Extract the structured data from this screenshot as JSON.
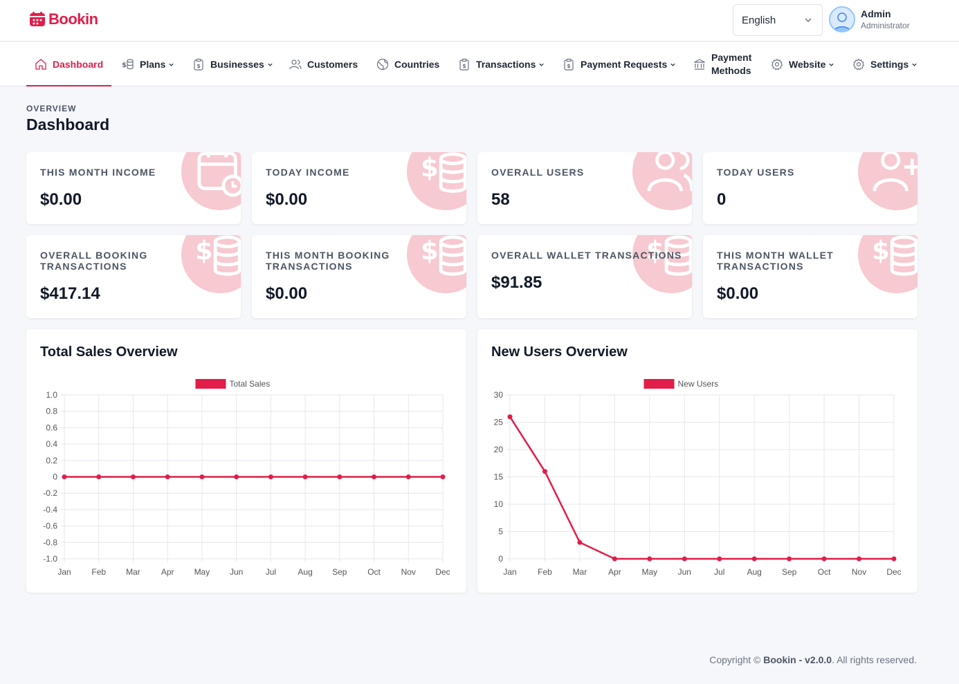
{
  "app": {
    "name": "Bookin"
  },
  "header": {
    "language": "English",
    "user": {
      "name": "Admin",
      "role": "Administrator"
    }
  },
  "nav": [
    {
      "label": "Dashboard",
      "icon": "home-icon",
      "dropdown": false,
      "active": true
    },
    {
      "label": "Plans",
      "icon": "dollar-coins-icon",
      "dropdown": true
    },
    {
      "label": "Businesses",
      "icon": "clipboard-dollar-icon",
      "dropdown": true
    },
    {
      "label": "Customers",
      "icon": "users-icon",
      "dropdown": false
    },
    {
      "label": "Countries",
      "icon": "globe-icon",
      "dropdown": false
    },
    {
      "label": "Transactions",
      "icon": "clipboard-dollar-icon",
      "dropdown": true
    },
    {
      "label": "Payment Requests",
      "icon": "clipboard-dollar-icon",
      "dropdown": true
    },
    {
      "label": "Payment",
      "label2": "Methods",
      "icon": "bank-icon",
      "dropdown": false
    },
    {
      "label": "Website",
      "icon": "gear-icon",
      "dropdown": true
    },
    {
      "label": "Settings",
      "icon": "gear-icon",
      "dropdown": true
    }
  ],
  "page": {
    "overline": "OVERVIEW",
    "title": "Dashboard"
  },
  "stats": [
    {
      "label": "THIS MONTH INCOME",
      "value": "$0.00",
      "icon": "calendar-clock-icon"
    },
    {
      "label": "TODAY INCOME",
      "value": "$0.00",
      "icon": "dollar-coins-icon"
    },
    {
      "label": "OVERALL USERS",
      "value": "58",
      "icon": "users-icon"
    },
    {
      "label": "TODAY USERS",
      "value": "0",
      "icon": "user-plus-icon"
    },
    {
      "label": "OVERALL BOOKING TRANSACTIONS",
      "value": "$417.14",
      "icon": "dollar-coins-icon"
    },
    {
      "label": "THIS MONTH BOOKING TRANSACTIONS",
      "value": "$0.00",
      "icon": "dollar-coins-icon"
    },
    {
      "label": "OVERALL WALLET TRANSACTIONS",
      "value": "$91.85",
      "icon": "dollar-coins-icon"
    },
    {
      "label": "THIS MONTH WALLET TRANSACTIONS",
      "value": "$0.00",
      "icon": "dollar-coins-icon"
    }
  ],
  "charts": [
    {
      "title": "Total Sales Overview"
    },
    {
      "title": "New Users Overview"
    }
  ],
  "chart_data": [
    {
      "type": "line",
      "title": "Total Sales Overview",
      "categories": [
        "Jan",
        "Feb",
        "Mar",
        "Apr",
        "May",
        "Jun",
        "Jul",
        "Aug",
        "Sep",
        "Oct",
        "Nov",
        "Dec"
      ],
      "series": [
        {
          "name": "Total Sales",
          "values": [
            0,
            0,
            0,
            0,
            0,
            0,
            0,
            0,
            0,
            0,
            0,
            0
          ]
        }
      ],
      "ylim": [
        -1.0,
        1.0
      ],
      "yticks": [
        "1.0",
        "0.8",
        "0.6",
        "0.4",
        "0.2",
        "0",
        "-0.2",
        "-0.4",
        "-0.6",
        "-0.8",
        "-1.0"
      ],
      "grid": true,
      "legend": "top-center",
      "color": "#e11d48"
    },
    {
      "type": "line",
      "title": "New Users Overview",
      "categories": [
        "Jan",
        "Feb",
        "Mar",
        "Apr",
        "May",
        "Jun",
        "Jul",
        "Aug",
        "Sep",
        "Oct",
        "Nov",
        "Dec"
      ],
      "series": [
        {
          "name": "New Users",
          "values": [
            26,
            16,
            3,
            0,
            0,
            0,
            0,
            0,
            0,
            0,
            0,
            0
          ]
        }
      ],
      "ylim": [
        0,
        30
      ],
      "yticks": [
        "30",
        "25",
        "20",
        "15",
        "10",
        "5",
        "0"
      ],
      "grid": true,
      "legend": "top-center",
      "color": "#e11d48"
    }
  ],
  "footer": {
    "prefix": "Copyright © ",
    "brand": "Bookin - v2.0.0",
    "suffix": ". All rights reserved."
  },
  "colors": {
    "accent": "#e11d48",
    "accent_soft": "#f7c9d0"
  }
}
